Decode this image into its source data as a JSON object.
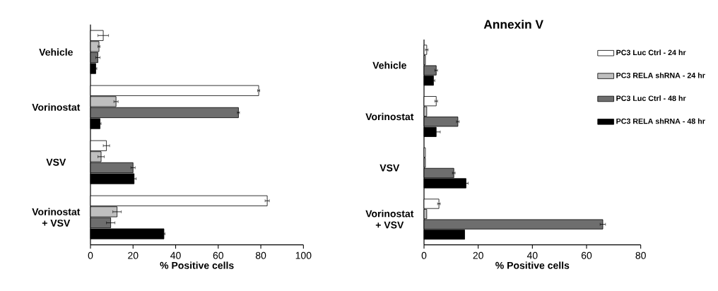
{
  "chart_data": [
    {
      "type": "bar",
      "orientation": "horizontal",
      "xlabel": "% Positive cells",
      "categories": [
        "Vehicle",
        "Vorinostat",
        "VSV",
        "Vorinostat + VSV"
      ],
      "xlim": [
        0,
        100
      ],
      "xticks": [
        0,
        20,
        40,
        60,
        80,
        100
      ],
      "series": [
        {
          "color": "#ffffff",
          "values": [
            6,
            79,
            7.5,
            83
          ],
          "errors": [
            2.5,
            0.5,
            1.5,
            1
          ]
        },
        {
          "color": "#bfbfbf",
          "values": [
            4,
            12,
            5,
            12.5
          ],
          "errors": [
            0.5,
            1,
            1.5,
            2
          ]
        },
        {
          "color": "#6e6e6e",
          "values": [
            3.5,
            69.5,
            20,
            9.5
          ],
          "errors": [
            1,
            0.5,
            1,
            2
          ]
        },
        {
          "color": "#000000",
          "values": [
            2.5,
            4.5,
            20.5,
            34.5
          ],
          "errors": [
            0.5,
            0.5,
            1,
            0.5
          ]
        }
      ]
    },
    {
      "type": "bar",
      "orientation": "horizontal",
      "title": "Annexin V",
      "xlabel": "% Positive cells",
      "categories": [
        "Vehicle",
        "Vorinostat",
        "VSV",
        "Vorinostat + VSV"
      ],
      "xlim": [
        0,
        80
      ],
      "xticks": [
        0,
        20,
        40,
        60,
        80
      ],
      "legend": "right",
      "series": [
        {
          "name": "PC3 Luc Ctrl - 24 hr",
          "color": "#ffffff",
          "values": [
            1,
            4.5,
            0.5,
            5.5
          ],
          "errors": [
            0.5,
            0.5,
            null,
            0.5
          ]
        },
        {
          "name": "PC3 RELA shRNA - 24 hr",
          "color": "#bfbfbf",
          "values": [
            0.5,
            1,
            0.5,
            1
          ]
        },
        {
          "name": "PC3 Luc Ctrl - 48 hr",
          "color": "#6e6e6e",
          "values": [
            4.5,
            12.5,
            11,
            66
          ],
          "errors": [
            0.5,
            0.5,
            0.5,
            1
          ]
        },
        {
          "name": "PC3 RELA shRNA - 48 hr",
          "color": "#000000",
          "values": [
            3.5,
            4.5,
            15.5,
            15
          ],
          "errors": [
            0.5,
            1.5,
            0.8,
            null
          ]
        }
      ]
    }
  ]
}
